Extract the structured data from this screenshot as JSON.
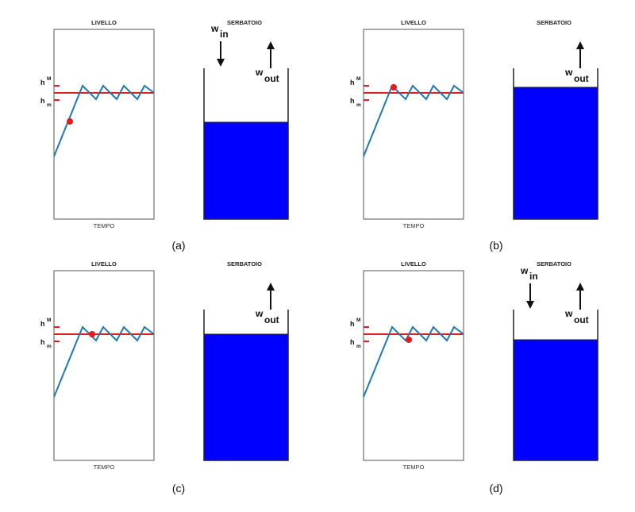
{
  "labels": {
    "level_title": "LIVELLO",
    "tank_title": "SERBATOIO",
    "time_axis": "TEMPO",
    "h_high": "h",
    "h_high_sub": "M",
    "h_low": "h",
    "h_low_sub": "m",
    "w_in": "w",
    "w_in_sub": "in",
    "w_out": "w",
    "w_out_sub": "out"
  },
  "colors": {
    "level_line": "#1f78b4",
    "setpoint_line": "#e41a1c",
    "marker": "#e41a1c",
    "water": "#0000ff",
    "frame": "#555555"
  },
  "panels": [
    {
      "caption": "(a)",
      "marker_t": 0.155,
      "tank_fill": 0.51,
      "inflow": true,
      "outflow": true
    },
    {
      "caption": "(b)",
      "marker_t": 0.29,
      "tank_fill": 0.7,
      "inflow": false,
      "outflow": true
    },
    {
      "caption": "(c)",
      "marker_t": 0.4,
      "tank_fill": 0.63,
      "inflow": false,
      "outflow": true
    },
    {
      "caption": "(d)",
      "marker_t": 0.49,
      "tank_fill": 0.6,
      "inflow": true,
      "outflow": true
    }
  ]
}
